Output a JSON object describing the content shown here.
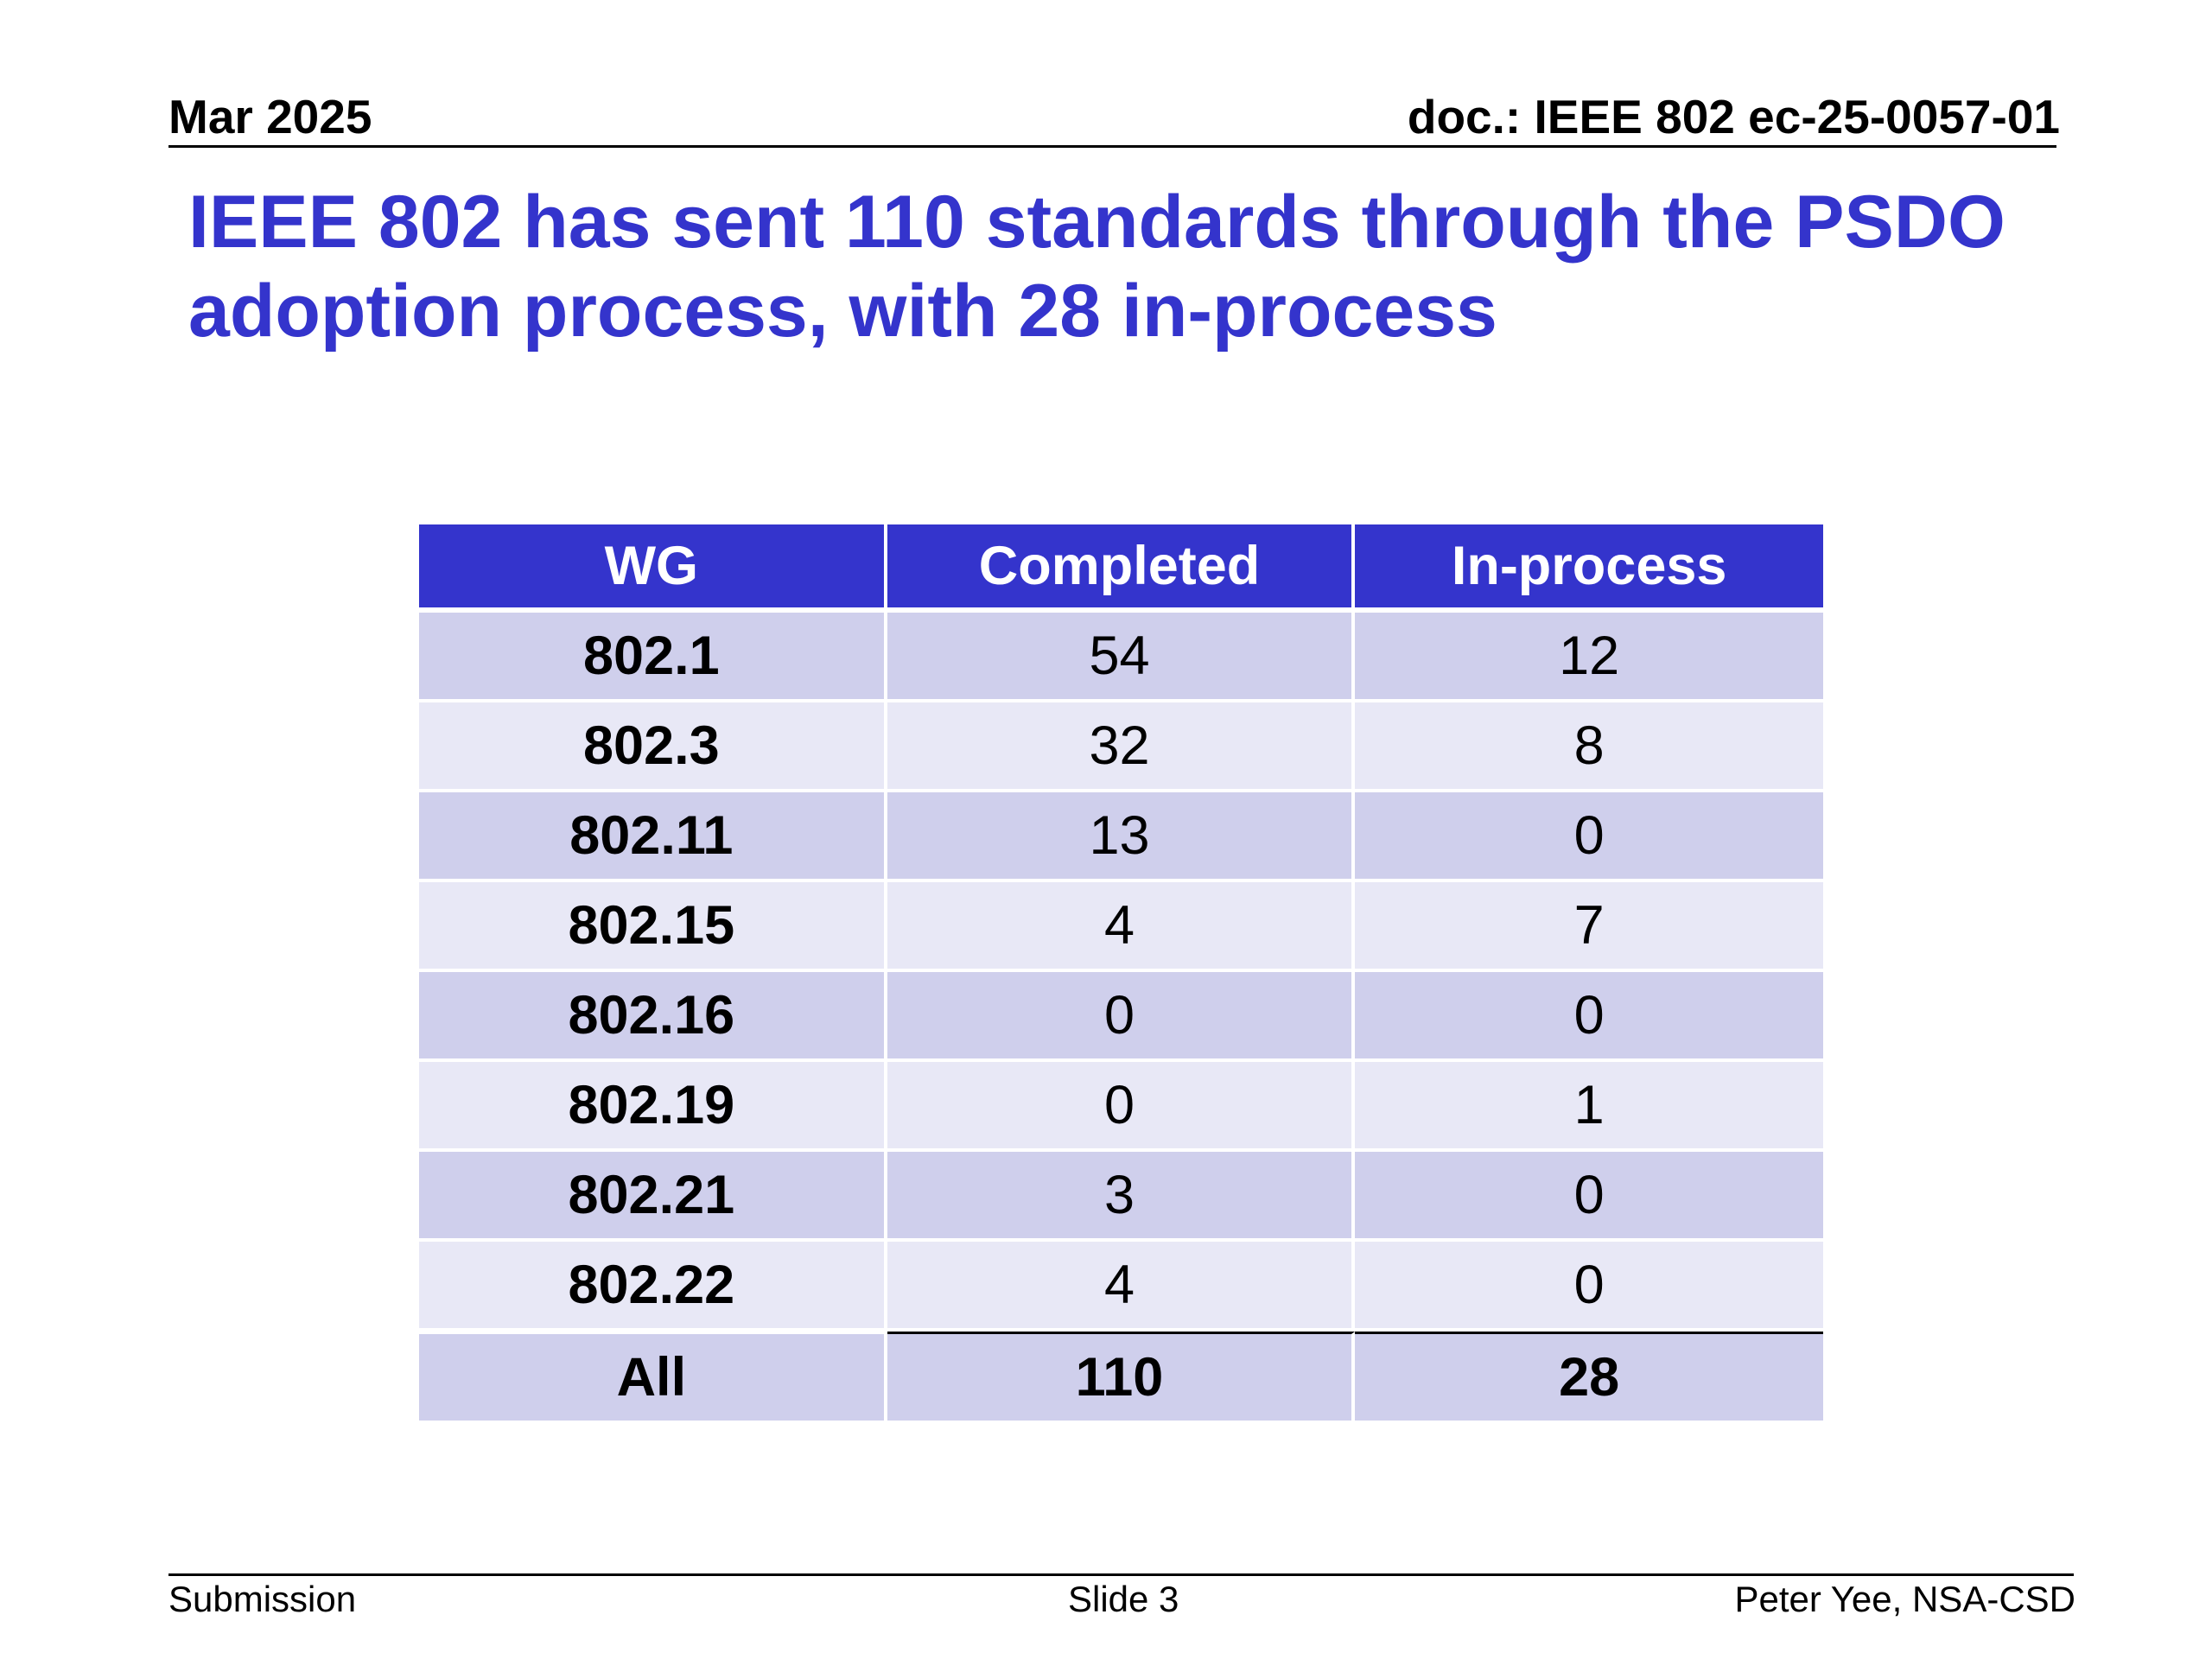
{
  "header": {
    "date": "Mar 2025",
    "doc_id": "doc.: IEEE 802 ec-25-0057-01"
  },
  "title": {
    "line1": "IEEE 802 has sent 110 standards through the PSDO",
    "line2": "adoption process, with 28 in-process"
  },
  "table": {
    "columns": [
      "WG",
      "Completed",
      "In-process"
    ],
    "rows": [
      {
        "wg": "802.1",
        "completed": "54",
        "in_process": "12"
      },
      {
        "wg": "802.3",
        "completed": "32",
        "in_process": "8"
      },
      {
        "wg": "802.11",
        "completed": "13",
        "in_process": "0"
      },
      {
        "wg": "802.15",
        "completed": "4",
        "in_process": "7"
      },
      {
        "wg": "802.16",
        "completed": "0",
        "in_process": "0"
      },
      {
        "wg": "802.19",
        "completed": "0",
        "in_process": "1"
      },
      {
        "wg": "802.21",
        "completed": "3",
        "in_process": "0"
      },
      {
        "wg": "802.22",
        "completed": "4",
        "in_process": "0"
      }
    ],
    "total": {
      "wg": "All",
      "completed": "110",
      "in_process": "28"
    }
  },
  "footer": {
    "left": "Submission",
    "center": "Slide 3",
    "right": "Peter Yee, NSA-CSD"
  },
  "colors": {
    "title": "#3434cc",
    "table_header": "#3434cc",
    "row_dark": "#cfcfec",
    "row_light": "#e8e8f6"
  }
}
